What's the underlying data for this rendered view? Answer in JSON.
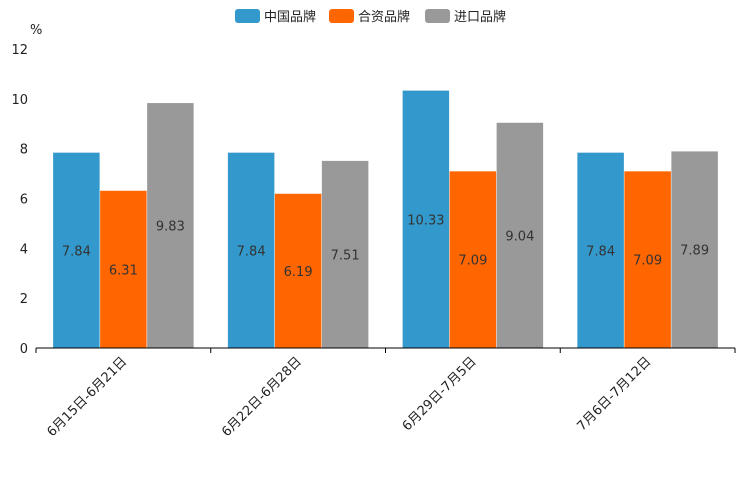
{
  "chart_data": {
    "type": "bar",
    "title": "",
    "xlabel": "",
    "ylabel": "%",
    "ylim": [
      0,
      12
    ],
    "yticks": [
      0,
      2,
      4,
      6,
      8,
      10,
      12
    ],
    "grid": false,
    "legend_position": "top-center",
    "categories": [
      "6月15日-6月21日",
      "6月22日-6月28日",
      "6月29日-7月5日",
      "7月6日-7月12日"
    ],
    "series": [
      {
        "name": "中国品牌",
        "color": "#3399cc",
        "values": [
          7.84,
          7.84,
          10.33,
          7.84
        ]
      },
      {
        "name": "合资品牌",
        "color": "#ff6600",
        "values": [
          6.31,
          6.19,
          7.09,
          7.09
        ]
      },
      {
        "name": "进口品牌",
        "color": "#999999",
        "values": [
          9.83,
          7.51,
          9.04,
          7.89
        ]
      }
    ]
  }
}
